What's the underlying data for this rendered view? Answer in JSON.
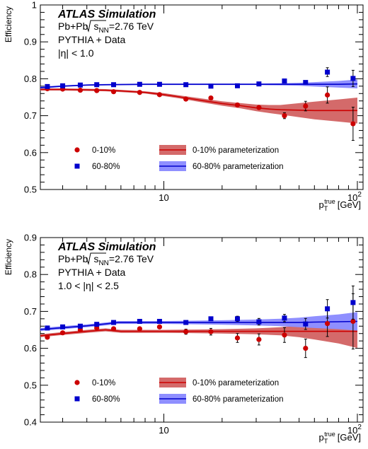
{
  "chart_data": [
    {
      "type": "scatter",
      "title": "ATLAS Simulation",
      "annotations": [
        "Pb+Pb",
        "s",
        "NN",
        "=2.76 TeV",
        "PYTHIA + Data",
        "|η| < 1.0"
      ],
      "xlabel": {
        "main": "p",
        "sub": "T",
        "sup": "true",
        "unit": "[GeV]"
      },
      "ylabel": "Efficiency",
      "x_scale": "log",
      "xlim": [
        2.3,
        107
      ],
      "ylim": [
        0.5,
        1.0
      ],
      "y_ticks": [
        "0.5",
        "0.6",
        "0.7",
        "0.8",
        "0.9",
        "1"
      ],
      "x_ticks": [
        {
          "label": "10",
          "value": 10
        },
        {
          "label": "10",
          "value": 100,
          "sup": "2"
        }
      ],
      "legend_position": "bottom",
      "series": [
        {
          "name": "0-10%",
          "marker": "circle",
          "color": "#cc0000",
          "x": [
            2.5,
            3.0,
            3.7,
            4.5,
            5.5,
            7.5,
            9.5,
            13.0,
            17.5,
            24.0,
            31.0,
            42.0,
            54.0,
            70.0,
            95.0
          ],
          "y": [
            0.773,
            0.772,
            0.769,
            0.768,
            0.765,
            0.763,
            0.757,
            0.745,
            0.748,
            0.729,
            0.722,
            0.7,
            0.726,
            0.756,
            0.678
          ],
          "yerr": [
            0.002,
            0.002,
            0.002,
            0.002,
            0.002,
            0.002,
            0.002,
            0.003,
            0.003,
            0.004,
            0.006,
            0.008,
            0.013,
            0.022,
            0.045
          ]
        },
        {
          "name": "60-80%",
          "marker": "square",
          "color": "#0000cc",
          "x": [
            2.5,
            3.0,
            3.7,
            4.5,
            5.5,
            7.5,
            9.5,
            13.0,
            17.5,
            24.0,
            31.0,
            42.0,
            54.0,
            70.0,
            95.0
          ],
          "y": [
            0.779,
            0.781,
            0.783,
            0.784,
            0.784,
            0.785,
            0.785,
            0.784,
            0.78,
            0.781,
            0.786,
            0.794,
            0.79,
            0.818,
            0.801
          ],
          "yerr": [
            0.002,
            0.002,
            0.002,
            0.002,
            0.002,
            0.002,
            0.002,
            0.002,
            0.002,
            0.003,
            0.003,
            0.004,
            0.005,
            0.012,
            0.022
          ]
        },
        {
          "name": "0-10% parameterization",
          "style": "band",
          "color": "#cc0000",
          "band_color": "#d46a6a",
          "x": [
            2.3,
            3.0,
            4.0,
            5.0,
            6.0,
            8.0,
            10.0,
            12.0,
            15.0,
            20.0,
            25.0,
            30.0,
            35.0,
            40.0,
            50.0,
            60.0,
            80.0,
            100.0
          ],
          "y": [
            0.771,
            0.771,
            0.77,
            0.769,
            0.767,
            0.763,
            0.757,
            0.751,
            0.743,
            0.733,
            0.727,
            0.721,
            0.718,
            0.716,
            0.715,
            0.714,
            0.714,
            0.714
          ],
          "band": [
            0.003,
            0.003,
            0.003,
            0.003,
            0.003,
            0.003,
            0.004,
            0.004,
            0.005,
            0.006,
            0.007,
            0.009,
            0.011,
            0.013,
            0.019,
            0.024,
            0.03,
            0.035
          ]
        },
        {
          "name": "60-80% parameterization",
          "style": "band",
          "color": "#0000cc",
          "band_color": "#8f8fff",
          "x": [
            2.3,
            3.0,
            4.0,
            5.0,
            8.0,
            10.0,
            20.0,
            30.0,
            40.0,
            50.0,
            60.0,
            80.0,
            100.0
          ],
          "y": [
            0.776,
            0.78,
            0.783,
            0.784,
            0.785,
            0.785,
            0.785,
            0.785,
            0.785,
            0.785,
            0.785,
            0.785,
            0.786
          ],
          "band": [
            0.003,
            0.002,
            0.002,
            0.002,
            0.002,
            0.002,
            0.002,
            0.002,
            0.003,
            0.004,
            0.006,
            0.009,
            0.012
          ]
        }
      ]
    },
    {
      "type": "scatter",
      "title": "ATLAS Simulation",
      "annotations": [
        "Pb+Pb",
        "s",
        "NN",
        "=2.76 TeV",
        "PYTHIA + Data",
        "1.0 < |η| < 2.5"
      ],
      "xlabel": {
        "main": "p",
        "sub": "T",
        "sup": "true",
        "unit": "[GeV]"
      },
      "ylabel": "Efficiency",
      "x_scale": "log",
      "xlim": [
        2.3,
        107
      ],
      "ylim": [
        0.4,
        0.9
      ],
      "y_ticks": [
        "0.4",
        "0.5",
        "0.6",
        "0.7",
        "0.8",
        "0.9"
      ],
      "x_ticks": [
        {
          "label": "10",
          "value": 10
        },
        {
          "label": "10",
          "value": 100,
          "sup": "2"
        }
      ],
      "legend_position": "bottom",
      "series": [
        {
          "name": "0-10%",
          "marker": "circle",
          "color": "#cc0000",
          "x": [
            2.5,
            3.0,
            3.7,
            4.5,
            5.5,
            7.5,
            9.5,
            13.0,
            17.5,
            24.0,
            31.0,
            42.0,
            54.0,
            70.0,
            95.0
          ],
          "y": [
            0.63,
            0.642,
            0.65,
            0.655,
            0.653,
            0.653,
            0.658,
            0.645,
            0.645,
            0.628,
            0.624,
            0.636,
            0.6,
            0.667,
            0.673
          ],
          "yerr": [
            0.003,
            0.003,
            0.003,
            0.003,
            0.003,
            0.004,
            0.005,
            0.007,
            0.009,
            0.012,
            0.015,
            0.02,
            0.025,
            0.035,
            0.075
          ]
        },
        {
          "name": "60-80%",
          "marker": "square",
          "color": "#0000cc",
          "x": [
            2.5,
            3.0,
            3.7,
            4.5,
            5.5,
            7.5,
            9.5,
            13.0,
            17.5,
            24.0,
            31.0,
            42.0,
            54.0,
            70.0,
            95.0
          ],
          "y": [
            0.655,
            0.658,
            0.66,
            0.665,
            0.67,
            0.673,
            0.673,
            0.67,
            0.68,
            0.68,
            0.672,
            0.682,
            0.666,
            0.707,
            0.724
          ],
          "yerr": [
            0.003,
            0.003,
            0.003,
            0.003,
            0.003,
            0.003,
            0.004,
            0.005,
            0.006,
            0.007,
            0.009,
            0.01,
            0.015,
            0.025,
            0.045
          ]
        },
        {
          "name": "0-10% parameterization",
          "style": "band",
          "color": "#cc0000",
          "band_color": "#d46a6a",
          "x": [
            2.3,
            3.0,
            4.0,
            5.0,
            6.0,
            8.0,
            10.0,
            15.0,
            20.0,
            30.0,
            40.0,
            50.0,
            60.0,
            80.0,
            100.0
          ],
          "y": [
            0.634,
            0.64,
            0.646,
            0.65,
            0.646,
            0.646,
            0.646,
            0.646,
            0.646,
            0.646,
            0.646,
            0.646,
            0.646,
            0.646,
            0.646
          ],
          "band": [
            0.004,
            0.004,
            0.004,
            0.004,
            0.004,
            0.004,
            0.004,
            0.005,
            0.006,
            0.008,
            0.011,
            0.016,
            0.022,
            0.033,
            0.045
          ]
        },
        {
          "name": "60-80% parameterization",
          "style": "band",
          "color": "#0000cc",
          "band_color": "#8f8fff",
          "x": [
            2.3,
            3.0,
            4.0,
            5.0,
            5.8,
            8.0,
            10.0,
            15.0,
            20.0,
            30.0,
            40.0,
            50.0,
            60.0,
            80.0,
            100.0
          ],
          "y": [
            0.651,
            0.656,
            0.661,
            0.666,
            0.67,
            0.67,
            0.67,
            0.67,
            0.67,
            0.67,
            0.67,
            0.67,
            0.671,
            0.672,
            0.673
          ],
          "band": [
            0.004,
            0.004,
            0.004,
            0.004,
            0.004,
            0.004,
            0.004,
            0.005,
            0.006,
            0.008,
            0.01,
            0.013,
            0.016,
            0.02,
            0.025
          ]
        }
      ]
    }
  ]
}
